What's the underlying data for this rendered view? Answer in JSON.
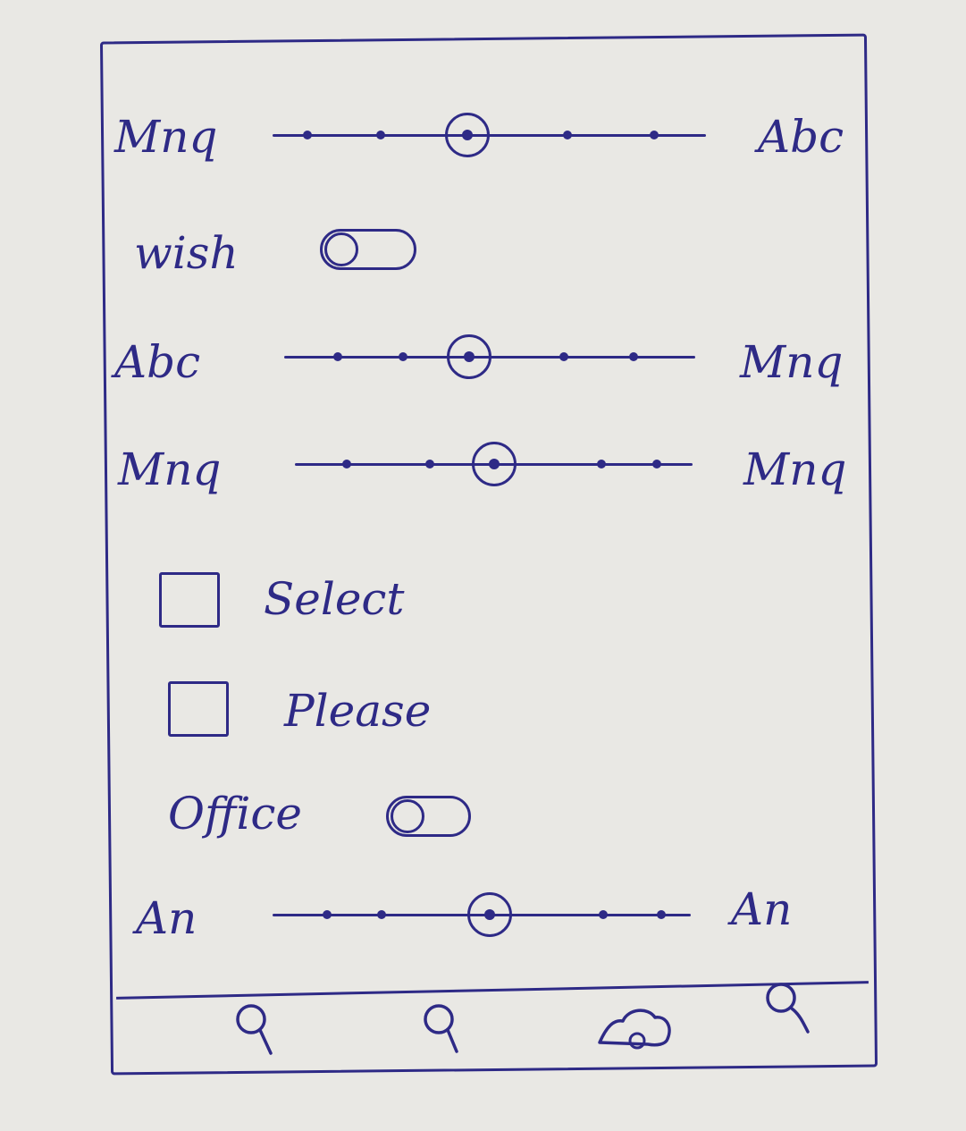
{
  "colors": {
    "ink": "#2e2a86",
    "paper": "#e9e8e4"
  },
  "sliders": [
    {
      "id": "slider-1",
      "left_label": "Mnq",
      "right_label": "Abc",
      "value": 0.45,
      "steps": [
        0.08,
        0.25,
        0.68,
        0.88
      ]
    },
    {
      "id": "slider-2",
      "left_label": "Abc",
      "right_label": "Mnq",
      "value": 0.45,
      "steps": [
        0.13,
        0.29,
        0.68,
        0.85
      ]
    },
    {
      "id": "slider-3",
      "left_label": "Mnq",
      "right_label": "Mnq",
      "value": 0.5,
      "steps": [
        0.13,
        0.34,
        0.77,
        0.91
      ]
    },
    {
      "id": "slider-4",
      "left_label": "An",
      "right_label": "An",
      "value": 0.52,
      "steps": [
        0.13,
        0.26,
        0.79,
        0.93
      ]
    }
  ],
  "toggles": {
    "wish": {
      "label": "wish",
      "on": false
    },
    "office": {
      "label": "Office",
      "on": false
    }
  },
  "checkboxes": {
    "select": {
      "label": "Select",
      "checked": false
    },
    "please": {
      "label": "Please",
      "checked": false
    }
  },
  "bottom_nav": {
    "icons": [
      "search-icon",
      "search-icon",
      "cloud-icon",
      "search-icon"
    ]
  }
}
